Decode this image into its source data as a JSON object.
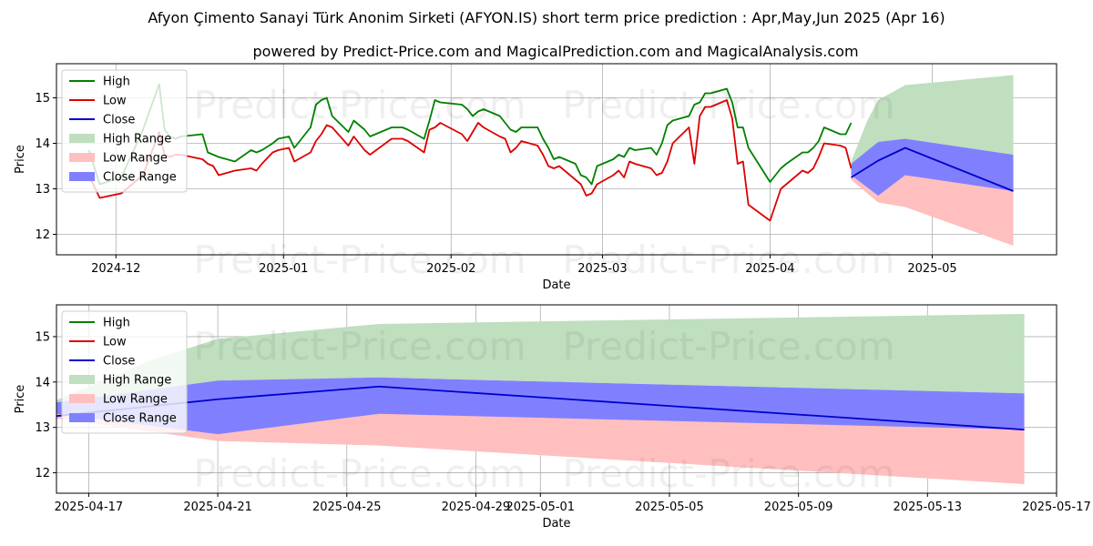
{
  "title": "Afyon Çimento Sanayi Türk Anonim Sirketi (AFYON.IS) short term price prediction : Apr,May,Jun 2025 (Apr 16)",
  "subtitle": "powered by Predict-Price.com and MagicalPrediction.com and MagicalAnalysis.com",
  "watermark": "Predict-Price.com",
  "colors": {
    "high": "#008000",
    "low": "#dd0000",
    "close": "#0000cc",
    "high_range": "#bfdfbf",
    "low_range": "#ffbfbf",
    "close_range": "#8080ff"
  },
  "chart_data": [
    {
      "type": "line",
      "xlabel": "Date",
      "ylabel": "Price",
      "xlim": [
        "2024-11-20",
        "2025-05-24"
      ],
      "ylim": [
        11.55,
        15.75
      ],
      "x_ticks": [
        "2024-12",
        "2025-01",
        "2025-02",
        "2025-03",
        "2025-04",
        "2025-05"
      ],
      "x_tick_dates": [
        "2024-12-01",
        "2025-01-01",
        "2025-02-01",
        "2025-03-01",
        "2025-04-01",
        "2025-05-01"
      ],
      "y_ticks": [
        12,
        13,
        14,
        15
      ],
      "grid": true,
      "legend": {
        "position": "upper-left",
        "entries": [
          "High",
          "Low",
          "Close",
          "High Range",
          "Low Range",
          "Close Range"
        ]
      },
      "series": [
        {
          "name": "High",
          "x": [
            "2024-11-26",
            "2024-11-28",
            "2024-12-02",
            "2024-12-06",
            "2024-12-09",
            "2024-12-10",
            "2024-12-11",
            "2024-12-12",
            "2024-12-13",
            "2024-12-17",
            "2024-12-18",
            "2024-12-19",
            "2024-12-20",
            "2024-12-23",
            "2024-12-26",
            "2024-12-27",
            "2024-12-28",
            "2024-12-30",
            "2024-12-31",
            "2025-01-02",
            "2025-01-03",
            "2025-01-06",
            "2025-01-07",
            "2025-01-08",
            "2025-01-09",
            "2025-01-10",
            "2025-01-13",
            "2025-01-14",
            "2025-01-16",
            "2025-01-17",
            "2025-01-21",
            "2025-01-22",
            "2025-01-23",
            "2025-01-24",
            "2025-01-27",
            "2025-01-28",
            "2025-01-29",
            "2025-01-30",
            "2025-02-03",
            "2025-02-04",
            "2025-02-05",
            "2025-02-06",
            "2025-02-07",
            "2025-02-10",
            "2025-02-11",
            "2025-02-12",
            "2025-02-13",
            "2025-02-14",
            "2025-02-17",
            "2025-02-18",
            "2025-02-19",
            "2025-02-20",
            "2025-02-21",
            "2025-02-24",
            "2025-02-25",
            "2025-02-26",
            "2025-02-27",
            "2025-02-28",
            "2025-03-03",
            "2025-03-04",
            "2025-03-05",
            "2025-03-06",
            "2025-03-07",
            "2025-03-10",
            "2025-03-11",
            "2025-03-12",
            "2025-03-13",
            "2025-03-14",
            "2025-03-17",
            "2025-03-18",
            "2025-03-19",
            "2025-03-20",
            "2025-03-21",
            "2025-03-24",
            "2025-03-25",
            "2025-03-26",
            "2025-03-27",
            "2025-03-28",
            "2025-04-01",
            "2025-04-03",
            "2025-04-04",
            "2025-04-07",
            "2025-04-08",
            "2025-04-09",
            "2025-04-10",
            "2025-04-11",
            "2025-04-14",
            "2025-04-15",
            "2025-04-16"
          ],
          "y": [
            13.85,
            13.1,
            13.25,
            14.3,
            15.3,
            14.3,
            14.15,
            14.1,
            14.15,
            14.2,
            13.8,
            13.75,
            13.7,
            13.6,
            13.85,
            13.8,
            13.85,
            14.0,
            14.1,
            14.15,
            13.9,
            14.35,
            14.85,
            14.95,
            15.0,
            14.6,
            14.25,
            14.5,
            14.3,
            14.15,
            14.35,
            14.35,
            14.35,
            14.3,
            14.1,
            14.5,
            14.95,
            14.9,
            14.85,
            14.75,
            14.6,
            14.7,
            14.75,
            14.6,
            14.45,
            14.3,
            14.25,
            14.35,
            14.35,
            14.1,
            13.9,
            13.65,
            13.7,
            13.55,
            13.3,
            13.25,
            13.1,
            13.5,
            13.65,
            13.75,
            13.7,
            13.9,
            13.85,
            13.9,
            13.75,
            14.0,
            14.4,
            14.5,
            14.6,
            14.85,
            14.9,
            15.1,
            15.1,
            15.2,
            14.9,
            14.35,
            14.35,
            13.9,
            13.15,
            13.45,
            13.55,
            13.8,
            13.8,
            13.9,
            14.05,
            14.35,
            14.2,
            14.2,
            14.45
          ]
        },
        {
          "name": "Low",
          "x": [
            "2024-11-26",
            "2024-11-28",
            "2024-12-02",
            "2024-12-06",
            "2024-12-09",
            "2024-12-10",
            "2024-12-11",
            "2024-12-12",
            "2024-12-13",
            "2024-12-17",
            "2024-12-18",
            "2024-12-19",
            "2024-12-20",
            "2024-12-23",
            "2024-12-26",
            "2024-12-27",
            "2024-12-28",
            "2024-12-30",
            "2024-12-31",
            "2025-01-02",
            "2025-01-03",
            "2025-01-06",
            "2025-01-07",
            "2025-01-08",
            "2025-01-09",
            "2025-01-10",
            "2025-01-13",
            "2025-01-14",
            "2025-01-16",
            "2025-01-17",
            "2025-01-21",
            "2025-01-22",
            "2025-01-23",
            "2025-01-24",
            "2025-01-27",
            "2025-01-28",
            "2025-01-29",
            "2025-01-30",
            "2025-02-03",
            "2025-02-04",
            "2025-02-05",
            "2025-02-06",
            "2025-02-07",
            "2025-02-10",
            "2025-02-11",
            "2025-02-12",
            "2025-02-13",
            "2025-02-14",
            "2025-02-17",
            "2025-02-18",
            "2025-02-19",
            "2025-02-20",
            "2025-02-21",
            "2025-02-24",
            "2025-02-25",
            "2025-02-26",
            "2025-02-27",
            "2025-02-28",
            "2025-03-03",
            "2025-03-04",
            "2025-03-05",
            "2025-03-06",
            "2025-03-07",
            "2025-03-10",
            "2025-03-11",
            "2025-03-12",
            "2025-03-13",
            "2025-03-14",
            "2025-03-17",
            "2025-03-18",
            "2025-03-19",
            "2025-03-20",
            "2025-03-21",
            "2025-03-24",
            "2025-03-25",
            "2025-03-26",
            "2025-03-27",
            "2025-03-28",
            "2025-04-01",
            "2025-04-03",
            "2025-04-04",
            "2025-04-07",
            "2025-04-08",
            "2025-04-09",
            "2025-04-10",
            "2025-04-11",
            "2025-04-14",
            "2025-04-15",
            "2025-04-16"
          ],
          "y": [
            13.3,
            12.8,
            12.9,
            13.3,
            14.25,
            13.75,
            13.7,
            13.75,
            13.75,
            13.65,
            13.55,
            13.5,
            13.3,
            13.4,
            13.45,
            13.4,
            13.55,
            13.8,
            13.85,
            13.9,
            13.6,
            13.8,
            14.05,
            14.2,
            14.4,
            14.35,
            13.95,
            14.15,
            13.85,
            13.75,
            14.1,
            14.1,
            14.1,
            14.05,
            13.8,
            14.3,
            14.35,
            14.45,
            14.2,
            14.05,
            14.25,
            14.45,
            14.35,
            14.15,
            14.1,
            13.8,
            13.9,
            14.05,
            13.95,
            13.75,
            13.5,
            13.45,
            13.5,
            13.2,
            13.1,
            12.85,
            12.9,
            13.1,
            13.3,
            13.4,
            13.25,
            13.6,
            13.55,
            13.45,
            13.3,
            13.35,
            13.6,
            14.0,
            14.35,
            13.55,
            14.6,
            14.8,
            14.8,
            14.95,
            14.55,
            13.55,
            13.6,
            12.65,
            12.3,
            13.0,
            13.1,
            13.4,
            13.35,
            13.45,
            13.7,
            14.0,
            13.95,
            13.9,
            13.45
          ]
        },
        {
          "name": "Close",
          "x": [
            "2025-04-16",
            "2025-04-21",
            "2025-04-26",
            "2025-05-16"
          ],
          "y": [
            13.25,
            13.62,
            13.9,
            12.95
          ]
        }
      ],
      "bands": [
        {
          "name": "High Range",
          "x": [
            "2025-04-16",
            "2025-04-19",
            "2025-04-21",
            "2025-04-26",
            "2025-05-16"
          ],
          "upper": [
            13.6,
            14.5,
            14.95,
            15.28,
            15.5
          ],
          "lower": [
            13.45,
            13.7,
            14.0,
            14.1,
            13.75
          ]
        },
        {
          "name": "Low Range",
          "x": [
            "2025-04-16",
            "2025-04-21",
            "2025-04-26",
            "2025-05-16"
          ],
          "upper": [
            13.3,
            12.9,
            13.32,
            13.05
          ],
          "lower": [
            13.2,
            12.7,
            12.6,
            11.75
          ]
        },
        {
          "name": "Close Range",
          "x": [
            "2025-04-16",
            "2025-04-21",
            "2025-04-26",
            "2025-05-16"
          ],
          "upper": [
            13.55,
            14.03,
            14.1,
            13.75
          ],
          "lower": [
            13.3,
            12.85,
            13.3,
            12.95
          ]
        }
      ]
    },
    {
      "type": "line",
      "xlabel": "Date",
      "ylabel": "Price",
      "xlim": [
        "2025-04-16",
        "2025-05-17"
      ],
      "ylim": [
        11.55,
        15.7
      ],
      "x_ticks": [
        "2025-04-17",
        "2025-04-21",
        "2025-04-25",
        "2025-04-29",
        "2025-05-01",
        "2025-05-05",
        "2025-05-09",
        "2025-05-13",
        "2025-05-17"
      ],
      "y_ticks": [
        12,
        13,
        14,
        15
      ],
      "grid": true,
      "legend": {
        "position": "upper-left",
        "entries": [
          "High",
          "Low",
          "Close",
          "High Range",
          "Low Range",
          "Close Range"
        ]
      },
      "series": [
        {
          "name": "Close",
          "x": [
            "2025-04-16",
            "2025-04-21",
            "2025-04-26",
            "2025-05-16"
          ],
          "y": [
            13.25,
            13.62,
            13.9,
            12.95
          ]
        }
      ],
      "bands": [
        {
          "name": "High Range",
          "x": [
            "2025-04-16",
            "2025-04-19",
            "2025-04-21",
            "2025-04-26",
            "2025-05-16"
          ],
          "upper": [
            13.6,
            14.5,
            14.95,
            15.28,
            15.5
          ],
          "lower": [
            13.45,
            13.7,
            14.0,
            14.1,
            13.75
          ]
        },
        {
          "name": "Low Range",
          "x": [
            "2025-04-16",
            "2025-04-21",
            "2025-04-26",
            "2025-05-16"
          ],
          "upper": [
            13.3,
            12.9,
            13.32,
            13.05
          ],
          "lower": [
            13.2,
            12.7,
            12.6,
            11.75
          ]
        },
        {
          "name": "Close Range",
          "x": [
            "2025-04-16",
            "2025-04-21",
            "2025-04-26",
            "2025-05-16"
          ],
          "upper": [
            13.55,
            14.03,
            14.1,
            13.75
          ],
          "lower": [
            13.3,
            12.85,
            13.3,
            12.95
          ]
        }
      ]
    }
  ]
}
